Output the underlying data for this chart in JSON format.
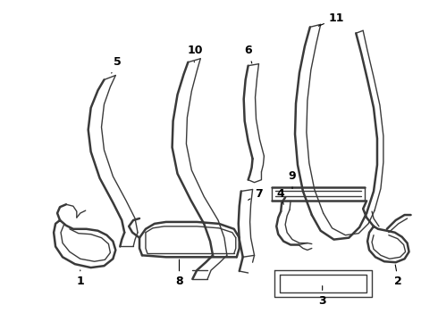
{
  "bg_color": "#ffffff",
  "line_color": "#3a3a3a",
  "label_color": "#000000",
  "lw_thick": 1.8,
  "lw_thin": 1.0,
  "fig_width": 4.9,
  "fig_height": 3.6,
  "dpi": 100
}
